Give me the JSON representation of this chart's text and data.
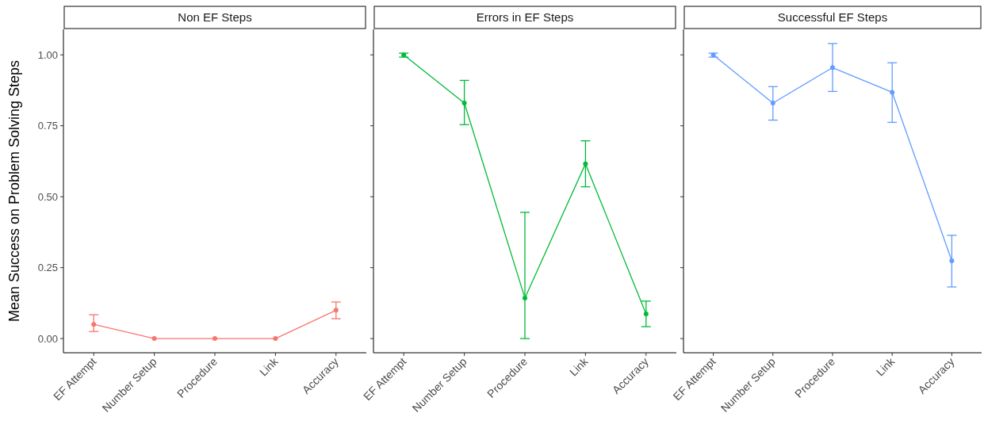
{
  "chart_data": [
    {
      "type": "line",
      "title": "Non EF Steps",
      "ylabel": "Mean Success on Problem Solving Steps",
      "categories": [
        "EF Attempt",
        "Number Setup",
        "Procedure",
        "Link",
        "Accuracy"
      ],
      "ylim": [
        -0.05,
        1.09
      ],
      "yticks": [
        {
          "value": 0,
          "label": "0.00"
        },
        {
          "value": 0.25,
          "label": "0.25"
        },
        {
          "value": 0.5,
          "label": "0.50"
        },
        {
          "value": 0.75,
          "label": "0.75"
        },
        {
          "value": 1,
          "label": "1.00"
        }
      ],
      "marker": "circle",
      "series": [
        {
          "color": "#f8766d",
          "values": [
            0.05,
            0,
            0,
            0,
            0.1
          ],
          "errors": [
            [
              0.025,
              0.084
            ],
            null,
            null,
            null,
            [
              0.07,
              0.129
            ]
          ]
        }
      ]
    },
    {
      "type": "line",
      "title": "Errors in EF Steps",
      "categories": [
        "EF Attempt",
        "Number Setup",
        "Procedure",
        "Link",
        "Accuracy"
      ],
      "ylim": [
        -0.05,
        1.09
      ],
      "yticks": [
        {
          "value": 0,
          "label": null
        },
        {
          "value": 0.25,
          "label": null
        },
        {
          "value": 0.5,
          "label": null
        },
        {
          "value": 0.75,
          "label": null
        },
        {
          "value": 1,
          "label": null
        }
      ],
      "tick_labels": "x",
      "marker": "circle",
      "series": [
        {
          "color": "#00ba38",
          "values": [
            1,
            0.83,
            0.143,
            0.616,
            0.087
          ],
          "errors": [
            [
              0.992,
              1.006
            ],
            [
              0.754,
              0.91
            ],
            [
              0,
              0.445
            ],
            [
              0.535,
              0.697
            ],
            [
              0.042,
              0.132
            ]
          ]
        }
      ]
    },
    {
      "type": "line",
      "title": "Successful EF Steps",
      "categories": [
        "EF Attempt",
        "Number Setup",
        "Procedure",
        "Link",
        "Accuracy"
      ],
      "ylim": [
        -0.05,
        1.09
      ],
      "yticks": [
        {
          "value": 0,
          "label": null
        },
        {
          "value": 0.25,
          "label": null
        },
        {
          "value": 0.5,
          "label": null
        },
        {
          "value": 0.75,
          "label": null
        },
        {
          "value": 1,
          "label": null
        }
      ],
      "tick_labels": "x",
      "marker": "circle",
      "series": [
        {
          "color": "#619cff",
          "values": [
            1,
            0.83,
            0.955,
            0.868,
            0.274
          ],
          "errors": [
            [
              0.992,
              1.006
            ],
            [
              0.77,
              0.888
            ],
            [
              0.871,
              1.04
            ],
            [
              0.762,
              0.972
            ],
            [
              0.182,
              0.364
            ]
          ]
        }
      ]
    }
  ]
}
